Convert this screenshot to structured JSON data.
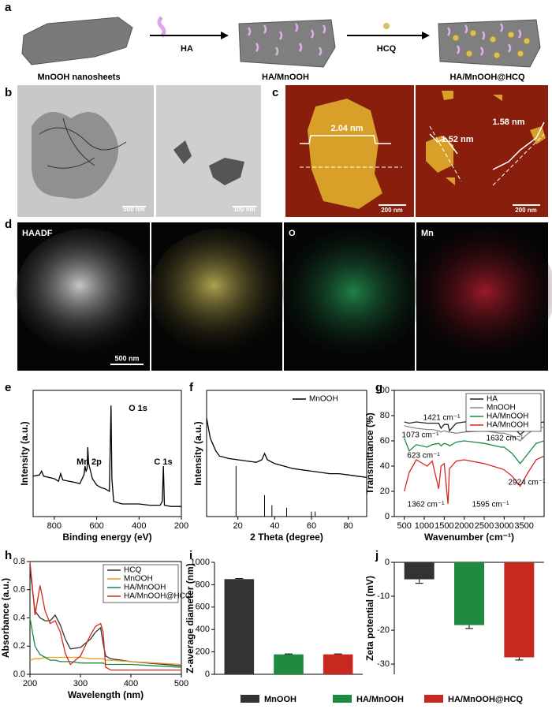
{
  "figure_labels": [
    "a",
    "b",
    "c",
    "d",
    "e",
    "f",
    "g",
    "h",
    "i",
    "j"
  ],
  "schematic": {
    "steps": [
      "MnOOH nanosheets",
      "HA/MnOOH",
      "HA/MnOOH@HCQ"
    ],
    "reagents": [
      "HA",
      "HCQ"
    ]
  },
  "tem": {
    "scale_bars": [
      "500 nm",
      "100 nm"
    ]
  },
  "afm": {
    "heights": [
      "2.04 nm",
      "1.52 nm",
      "1.58 nm"
    ],
    "scale_bars": [
      "200 nm",
      "200 nm"
    ]
  },
  "mapping": {
    "channels": [
      "HAADF",
      "O",
      "Mn"
    ],
    "scale_bar": "500 nm"
  },
  "chart_data": [
    {
      "type": "line",
      "xlabel": "Binding energy (eV)",
      "ylabel": "Intensity (a.u.)",
      "x": [
        900,
        870,
        860,
        850,
        800,
        780,
        770,
        760,
        700,
        680,
        660,
        655,
        650,
        645,
        642,
        638,
        620,
        600,
        580,
        560,
        540,
        532,
        528,
        520,
        500,
        480,
        400,
        350,
        300,
        290,
        285,
        280,
        250,
        200
      ],
      "series": [
        {
          "color": "#000000",
          "values": [
            32,
            33,
            36,
            32,
            30,
            28,
            34,
            29,
            27,
            26,
            33,
            40,
            36,
            38,
            55,
            42,
            30,
            25,
            23,
            22,
            20,
            88,
            30,
            12,
            11,
            10,
            10,
            9,
            9,
            12,
            40,
            9,
            8,
            8
          ]
        }
      ],
      "xlim": [
        900,
        200
      ],
      "ylim": [
        0,
        100
      ],
      "xticks": [
        800,
        600,
        400,
        200
      ],
      "annotations": [
        "Mn 2p",
        "O 1s",
        "C 1s"
      ]
    },
    {
      "type": "line",
      "xlabel": "2 Theta (degree)",
      "ylabel": "Intensity (a.u.)",
      "x": [
        3,
        5,
        8,
        10,
        15,
        20,
        25,
        30,
        33,
        34.5,
        36,
        40,
        45,
        50,
        55,
        60,
        65,
        70,
        75,
        80,
        85,
        90
      ],
      "series": [
        {
          "name": "MnOOH",
          "color": "#000000",
          "values": [
            78,
            62,
            52,
            48,
            46,
            45,
            44,
            43,
            45,
            50,
            45,
            42,
            40,
            38,
            37,
            36,
            35,
            34,
            34,
            33,
            32,
            31
          ]
        }
      ],
      "reference": {
        "x": [
          19,
          34.5,
          38.5,
          46.5,
          60,
          62
        ],
        "values": [
          40,
          17,
          9,
          7,
          4,
          4
        ]
      },
      "xlim": [
        3,
        90
      ],
      "ylim": [
        0,
        100
      ],
      "xticks": [
        20,
        40,
        60,
        80
      ],
      "legend": "upper right"
    },
    {
      "type": "line",
      "xlabel": "Wavenumber (cm⁻¹)",
      "ylabel": "Transmittance (%)",
      "x": [
        500,
        623,
        800,
        1073,
        1200,
        1362,
        1421,
        1500,
        1595,
        1632,
        1800,
        2000,
        2500,
        2924,
        3000,
        3200,
        3400,
        3600,
        3800,
        4000
      ],
      "series": [
        {
          "name": "HA",
          "color": "#222222",
          "values": [
            75,
            74,
            75,
            74,
            74,
            74,
            70,
            73,
            73,
            68,
            74,
            75,
            75,
            74,
            74,
            72,
            65,
            70,
            74,
            75
          ]
        },
        {
          "name": "MnOOH",
          "color": "#888888",
          "values": [
            72,
            71,
            70,
            69,
            69,
            68,
            67,
            68,
            67,
            67,
            66,
            67,
            68,
            66,
            66,
            64,
            60,
            66,
            70,
            71
          ]
        },
        {
          "name": "HA/MnOOH",
          "color": "#1e8a3e",
          "values": [
            62,
            52,
            57,
            55,
            57,
            58,
            56,
            58,
            57,
            56,
            59,
            60,
            58,
            55,
            55,
            50,
            42,
            50,
            58,
            60
          ]
        },
        {
          "name": "HA/MnOOH",
          "color": "#d42a1e",
          "values": [
            20,
            35,
            45,
            40,
            44,
            22,
            40,
            42,
            10,
            38,
            44,
            45,
            42,
            38,
            37,
            32,
            24,
            35,
            45,
            48
          ]
        }
      ],
      "xlim": [
        250,
        4000
      ],
      "ylim": [
        0,
        100
      ],
      "xticks": [
        500,
        1000,
        1500,
        2000,
        2500,
        3000,
        3500
      ],
      "yticks": [
        0,
        20,
        40,
        60,
        80,
        100
      ],
      "legend": "upper right",
      "annotations": [
        "1421 cm⁻¹",
        "1073 cm⁻¹",
        "1632 cm⁻¹",
        "623 cm⁻¹",
        "2924 cm⁻¹",
        "1362 cm⁻¹",
        "1595 cm⁻¹"
      ]
    },
    {
      "type": "line",
      "xlabel": "Wavelength (nm)",
      "ylabel": "Absorbance (a.u.)",
      "x": [
        200,
        210,
        220,
        230,
        240,
        250,
        260,
        270,
        280,
        300,
        320,
        330,
        340,
        345,
        350,
        360,
        400,
        450,
        500
      ],
      "series": [
        {
          "name": "HCQ",
          "color": "#333333",
          "values": [
            0.75,
            0.45,
            0.4,
            0.38,
            0.38,
            0.42,
            0.35,
            0.25,
            0.18,
            0.19,
            0.25,
            0.3,
            0.33,
            0.22,
            0.13,
            0.11,
            0.09,
            0.075,
            0.06
          ]
        },
        {
          "name": "MnOOH",
          "color": "#e0a020",
          "values": [
            0.1,
            0.11,
            0.11,
            0.12,
            0.12,
            0.12,
            0.12,
            0.12,
            0.12,
            0.12,
            0.11,
            0.11,
            0.11,
            0.11,
            0.1,
            0.1,
            0.09,
            0.08,
            0.07
          ]
        },
        {
          "name": "HA/MnOOH",
          "color": "#1e8a3e",
          "values": [
            0.4,
            0.2,
            0.14,
            0.12,
            0.1,
            0.1,
            0.09,
            0.09,
            0.09,
            0.08,
            0.08,
            0.08,
            0.08,
            0.08,
            0.07,
            0.07,
            0.07,
            0.06,
            0.05
          ]
        },
        {
          "name": "HA/MnOOH@HCQ",
          "color": "#d42a1e",
          "values": [
            0.8,
            0.42,
            0.63,
            0.45,
            0.36,
            0.38,
            0.3,
            0.15,
            0.07,
            0.13,
            0.28,
            0.34,
            0.36,
            0.3,
            0.05,
            0.03,
            0.03,
            0.03,
            0.03
          ]
        }
      ],
      "xlim": [
        200,
        500
      ],
      "ylim": [
        0,
        0.8
      ],
      "xticks": [
        200,
        300,
        400,
        500
      ],
      "yticks": [
        {
          "value": 0,
          "label": "0.0"
        },
        {
          "value": 0.2,
          "label": "0.2"
        },
        {
          "value": 0.4,
          "label": "0.4"
        },
        {
          "value": 0.6,
          "label": "0.6"
        },
        {
          "value": 0.8,
          "label": "0.8"
        }
      ],
      "legend": "upper right"
    },
    {
      "type": "bar",
      "ylabel": "Z-average diameter (nm)",
      "categories": [
        "MnOOH",
        "HA/MnOOH",
        "HA/MnOOH@HCQ"
      ],
      "colors": [
        "#333333",
        "#1e8a3e",
        "#c8281e"
      ],
      "values": [
        850,
        178,
        178
      ],
      "errors": [
        5,
        4,
        4
      ],
      "ylim": [
        0,
        1000
      ],
      "yticks": [
        0,
        200,
        400,
        600,
        800,
        1000
      ]
    },
    {
      "type": "bar",
      "ylabel": "Zeta potential (mV)",
      "values": [
        -5,
        -18.5,
        -28
      ],
      "errors": [
        1.2,
        1,
        0.8
      ],
      "ylim": [
        -33,
        0
      ],
      "yticks": [
        0,
        -10,
        -20,
        -30
      ]
    }
  ]
}
